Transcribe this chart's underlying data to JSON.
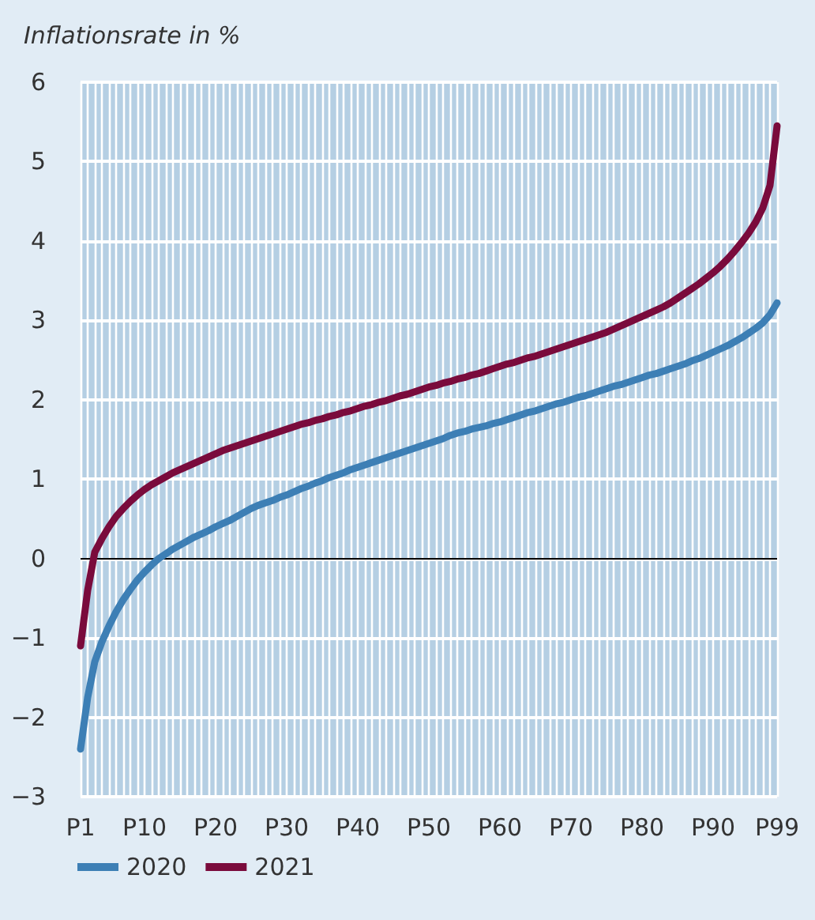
{
  "chart_data": {
    "type": "line",
    "ylabel": "Inflationsrate in %",
    "categories": [
      "P1",
      null,
      null,
      null,
      null,
      null,
      null,
      null,
      null,
      "P10",
      null,
      null,
      null,
      null,
      null,
      null,
      null,
      null,
      null,
      "P20",
      null,
      null,
      null,
      null,
      null,
      null,
      null,
      null,
      null,
      "P30",
      null,
      null,
      null,
      null,
      null,
      null,
      null,
      null,
      null,
      "P40",
      null,
      null,
      null,
      null,
      null,
      null,
      null,
      null,
      null,
      "P50",
      null,
      null,
      null,
      null,
      null,
      null,
      null,
      null,
      null,
      "P60",
      null,
      null,
      null,
      null,
      null,
      null,
      null,
      null,
      null,
      "P70",
      null,
      null,
      null,
      null,
      null,
      null,
      null,
      null,
      null,
      "P80",
      null,
      null,
      null,
      null,
      null,
      null,
      null,
      null,
      null,
      "P90",
      null,
      null,
      null,
      null,
      null,
      null,
      null,
      null,
      "P99"
    ],
    "series": [
      {
        "name": "2020",
        "color": "#3d7fb5",
        "values": [
          -2.4,
          -1.75,
          -1.3,
          -1.05,
          -0.85,
          -0.67,
          -0.52,
          -0.39,
          -0.27,
          -0.17,
          -0.08,
          0,
          0.06,
          0.12,
          0.17,
          0.22,
          0.27,
          0.31,
          0.35,
          0.4,
          0.44,
          0.48,
          0.53,
          0.58,
          0.63,
          0.67,
          0.7,
          0.73,
          0.77,
          0.8,
          0.84,
          0.88,
          0.91,
          0.95,
          0.98,
          1.02,
          1.05,
          1.08,
          1.12,
          1.15,
          1.18,
          1.21,
          1.24,
          1.27,
          1.3,
          1.33,
          1.36,
          1.39,
          1.42,
          1.45,
          1.48,
          1.51,
          1.55,
          1.58,
          1.6,
          1.63,
          1.65,
          1.67,
          1.7,
          1.72,
          1.75,
          1.78,
          1.81,
          1.84,
          1.86,
          1.89,
          1.92,
          1.95,
          1.97,
          2.0,
          2.03,
          2.05,
          2.08,
          2.11,
          2.14,
          2.17,
          2.19,
          2.22,
          2.25,
          2.28,
          2.31,
          2.33,
          2.36,
          2.39,
          2.42,
          2.45,
          2.49,
          2.52,
          2.56,
          2.6,
          2.64,
          2.68,
          2.73,
          2.78,
          2.84,
          2.9,
          2.97,
          3.07,
          3.22
        ]
      },
      {
        "name": "2021",
        "color": "#7a0b3c",
        "values": [
          -1.1,
          -0.4,
          0.08,
          0.25,
          0.4,
          0.53,
          0.63,
          0.72,
          0.8,
          0.87,
          0.93,
          0.98,
          1.03,
          1.08,
          1.12,
          1.16,
          1.2,
          1.24,
          1.28,
          1.32,
          1.36,
          1.39,
          1.42,
          1.45,
          1.48,
          1.51,
          1.54,
          1.57,
          1.6,
          1.63,
          1.66,
          1.69,
          1.71,
          1.74,
          1.76,
          1.79,
          1.81,
          1.84,
          1.86,
          1.89,
          1.92,
          1.94,
          1.97,
          1.99,
          2.02,
          2.05,
          2.07,
          2.1,
          2.13,
          2.16,
          2.18,
          2.21,
          2.23,
          2.26,
          2.28,
          2.31,
          2.33,
          2.36,
          2.39,
          2.42,
          2.45,
          2.47,
          2.5,
          2.53,
          2.55,
          2.58,
          2.61,
          2.64,
          2.67,
          2.7,
          2.73,
          2.76,
          2.79,
          2.82,
          2.85,
          2.89,
          2.93,
          2.97,
          3.01,
          3.05,
          3.09,
          3.13,
          3.17,
          3.22,
          3.28,
          3.34,
          3.4,
          3.46,
          3.53,
          3.6,
          3.68,
          3.77,
          3.87,
          3.98,
          4.1,
          4.24,
          4.42,
          4.7,
          5.45
        ]
      }
    ],
    "ylim": [
      -3,
      6
    ],
    "yticks": [
      {
        "value": -3,
        "label": "−3"
      },
      {
        "value": -2,
        "label": "−2"
      },
      {
        "value": -1,
        "label": "−1"
      },
      0,
      1,
      2,
      3,
      4,
      5,
      6
    ],
    "ref_lines": [
      {
        "axis": "y",
        "value": 0,
        "color": "#000000"
      }
    ],
    "grid": true,
    "legend": "bottom left"
  }
}
